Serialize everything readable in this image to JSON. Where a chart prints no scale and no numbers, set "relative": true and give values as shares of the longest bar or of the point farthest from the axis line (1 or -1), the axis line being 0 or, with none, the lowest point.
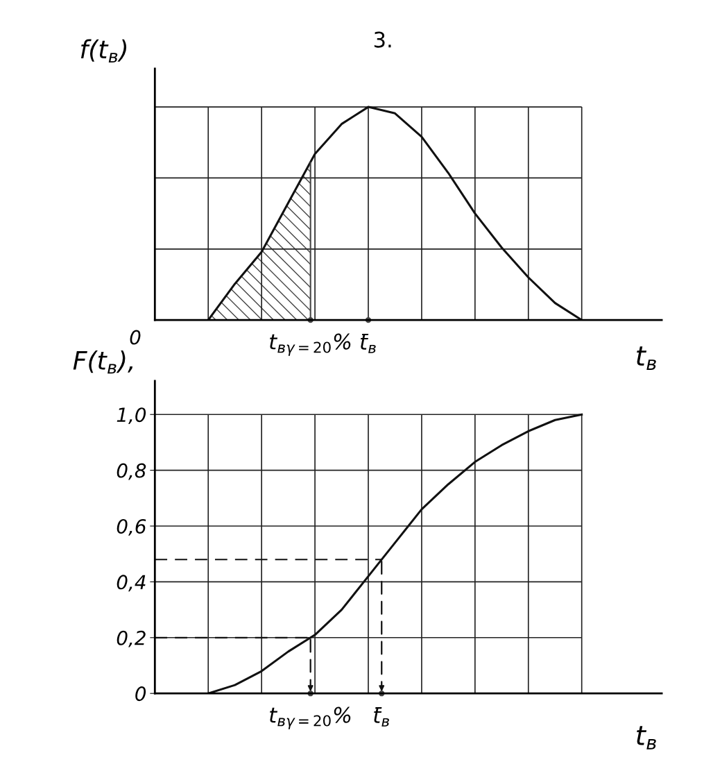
{
  "chart_data": [
    {
      "type": "line",
      "title": "3.",
      "ylabel": "f(t$_{в}$)",
      "xlabel": "t$_{в}$",
      "relative": true,
      "grid": true,
      "tick_labels": false,
      "categories": [
        null,
        null,
        null,
        null,
        null,
        null,
        null,
        null,
        null,
        null,
        null,
        null,
        null,
        null,
        null
      ],
      "series": [
        {
          "color": "#111111",
          "values": [
            0,
            0.17,
            0.32,
            0.55,
            0.78,
            0.92,
            1,
            0.97,
            0.86,
            0.69,
            0.5,
            0.34,
            0.2,
            0.08,
            0
          ]
        }
      ],
      "annotations": [
        "0",
        "t$_{вγ=20}$%",
        "t̄$_{в}$"
      ]
    },
    {
      "type": "line",
      "ylabel": "F(t$_{в}$),",
      "xlabel": "t$_{в}$",
      "grid": true,
      "tick_labels": "y",
      "categories": [
        null,
        null,
        null,
        null,
        null,
        null,
        null,
        null,
        null,
        null,
        null,
        null,
        null,
        null,
        null
      ],
      "ylim": [
        0,
        1.12
      ],
      "yticks": [
        {
          "value": 0,
          "label": "0"
        },
        {
          "value": 0.2,
          "label": "0,2"
        },
        {
          "value": 0.4,
          "label": "0,4"
        },
        {
          "value": 0.6,
          "label": "0,6"
        },
        {
          "value": 0.8,
          "label": "0,8"
        },
        {
          "value": 1.0,
          "label": "1,0"
        }
      ],
      "series": [
        {
          "color": "#111111",
          "values": [
            0,
            0.03,
            0.08,
            0.15,
            0.21,
            0.3,
            0.42,
            0.54,
            0.66,
            0.75,
            0.83,
            0.89,
            0.94,
            0.98,
            1.0
          ]
        }
      ],
      "ref_lines": [
        {
          "axis": "y",
          "value": 0.2,
          "line_style": "dashed",
          "color": "#111111"
        },
        {
          "axis": "y",
          "value": 0.48,
          "line_style": "dashed",
          "color": "#111111"
        }
      ],
      "annotations": [
        "t$_{вγ=20}$%",
        "t̄$_{в}$"
      ]
    }
  ]
}
